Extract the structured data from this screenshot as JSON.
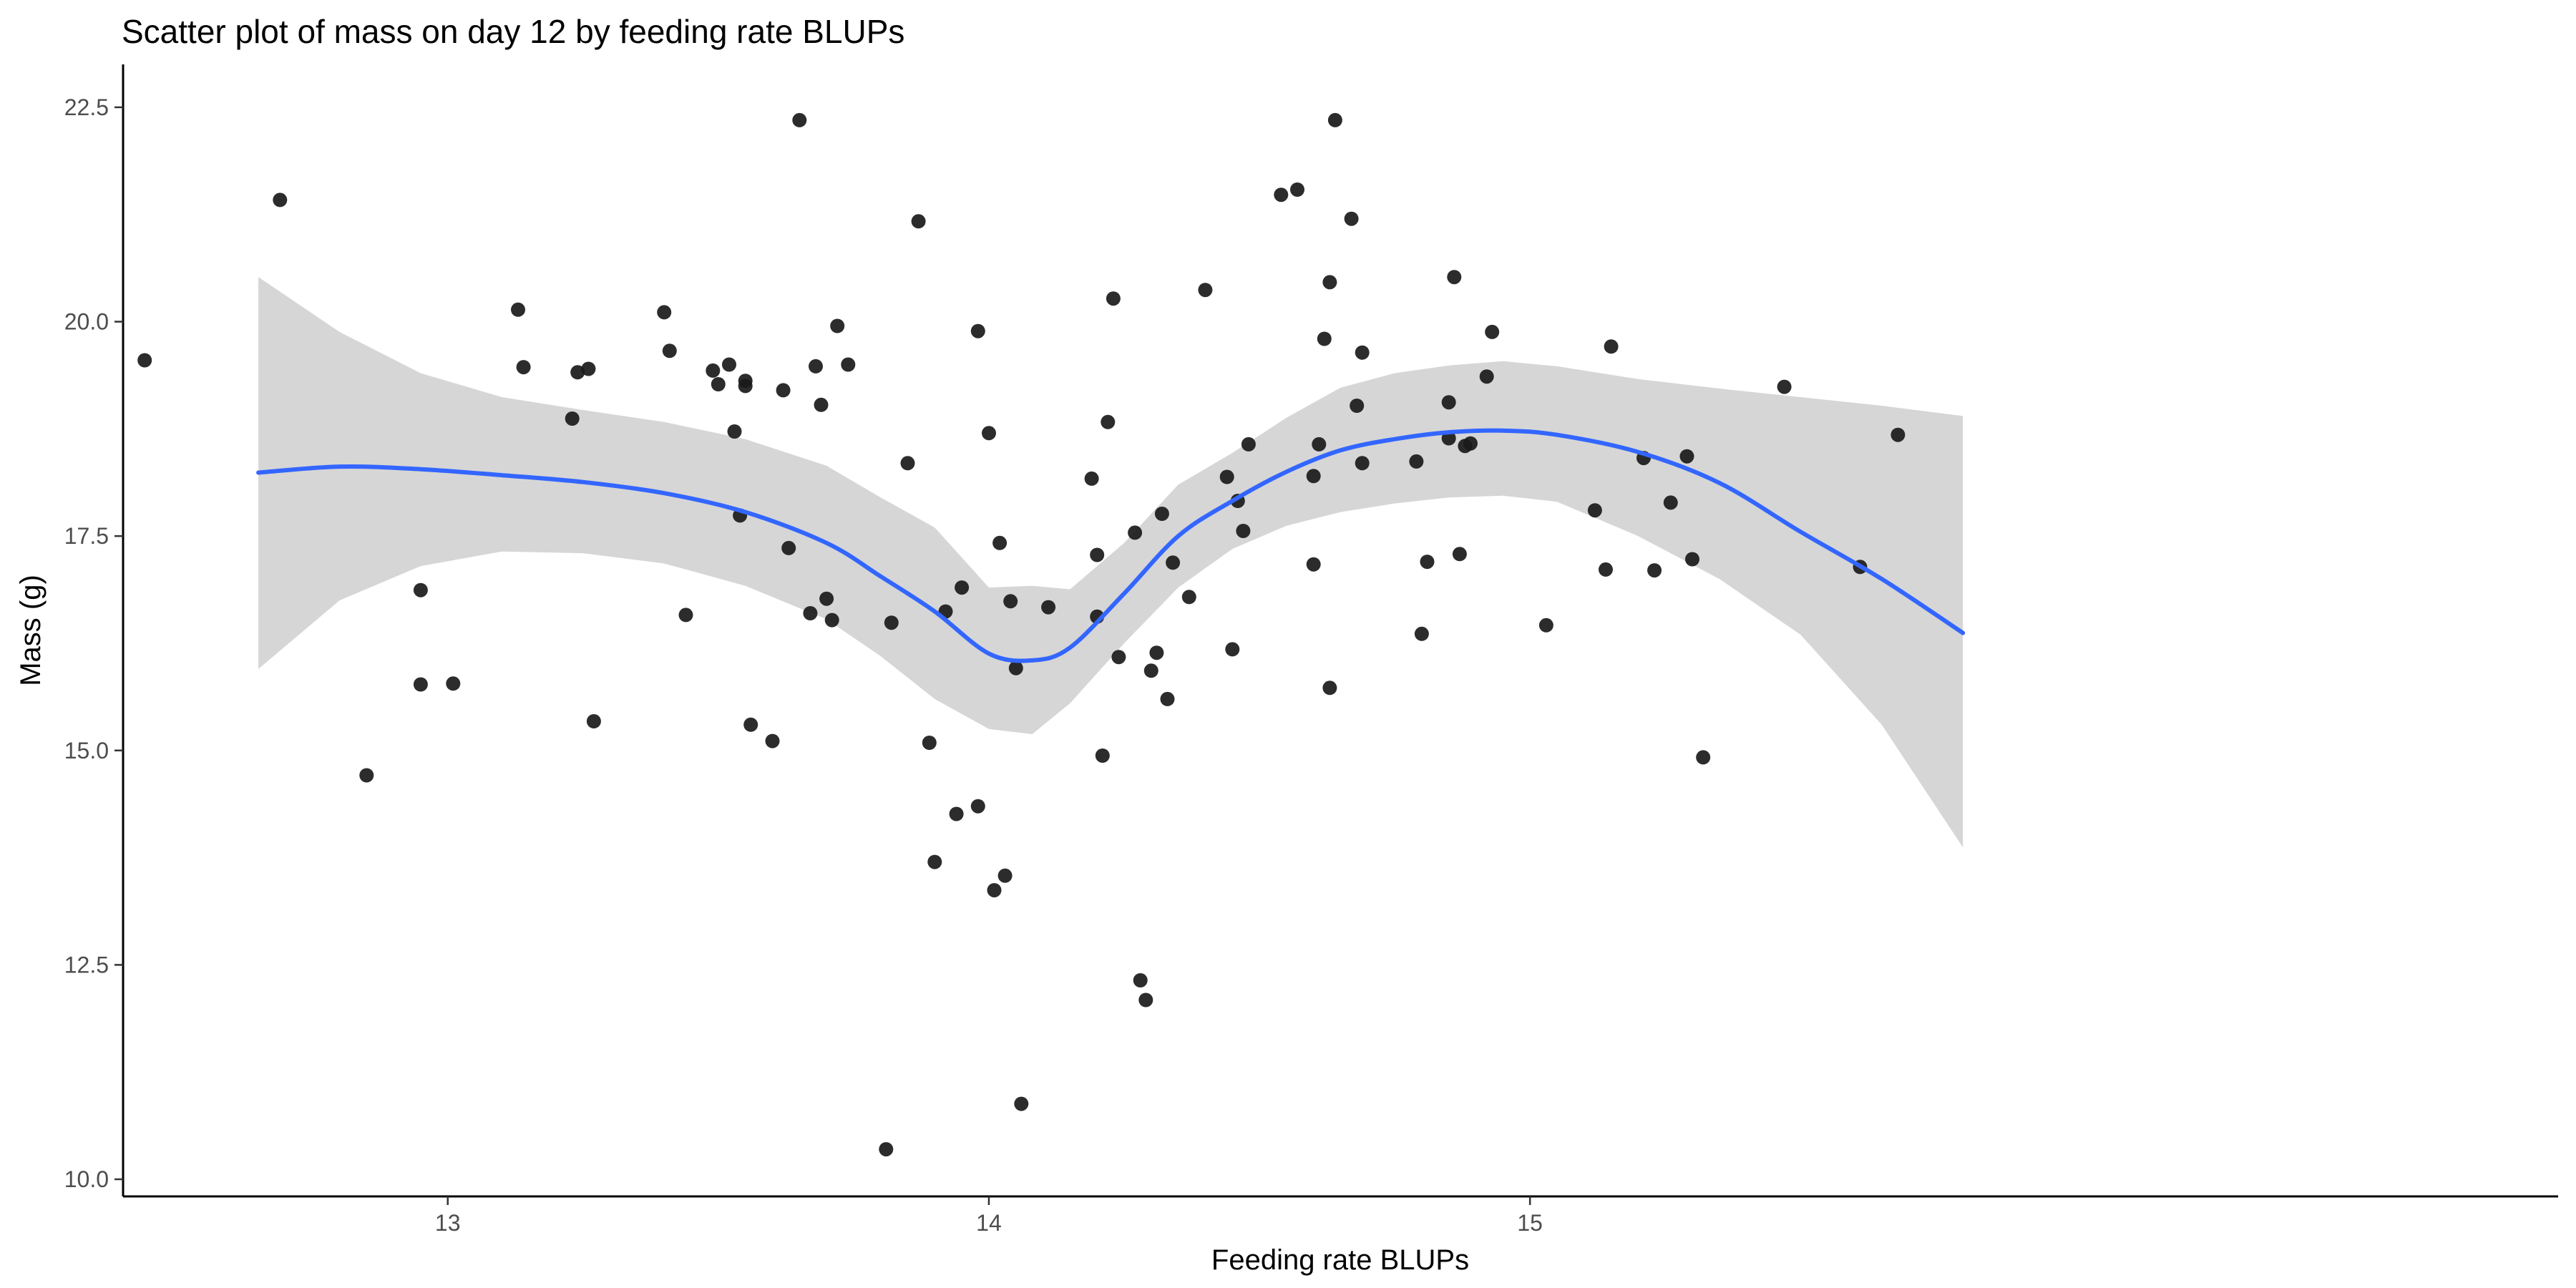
{
  "chart_data": {
    "type": "scatter",
    "title": "Scatter plot of mass on day 12 by feeding rate BLUPs",
    "xlabel": "Feeding rate BLUPs",
    "ylabel": "Mass (g)",
    "xlim": [
      12.4,
      16.9
    ],
    "ylim": [
      9.8,
      23.0
    ],
    "x_ticks": [
      13,
      14,
      15
    ],
    "x_tick_labels": [
      "13",
      "14",
      "15"
    ],
    "y_ticks": [
      10,
      12.5,
      15,
      17.5,
      20,
      22.5
    ],
    "y_tick_labels": [
      "10.0",
      "12.5",
      "15.0",
      "17.5",
      "20.0",
      "22.5"
    ],
    "grid": false,
    "legend": "none",
    "colors": {
      "points": "#1a1a1a",
      "smooth_line": "#3366ff",
      "confidence_band": "#d6d6d6"
    },
    "series": [
      {
        "kind": "points",
        "x": [
          12.44,
          12.69,
          12.85,
          12.95,
          12.95,
          13.01,
          13.13,
          13.14,
          13.23,
          13.24,
          13.26,
          13.27,
          13.4,
          13.41,
          13.44,
          13.49,
          13.5,
          13.52,
          13.53,
          13.54,
          13.55,
          13.55,
          13.56,
          13.6,
          13.62,
          13.63,
          13.65,
          13.67,
          13.68,
          13.69,
          13.7,
          13.71,
          13.72,
          13.74,
          13.81,
          13.82,
          13.85,
          13.87,
          13.89,
          13.9,
          13.92,
          13.94,
          13.95,
          13.98,
          13.98,
          14.0,
          14.01,
          14.02,
          14.03,
          14.04,
          14.05,
          14.06,
          14.11,
          14.19,
          14.2,
          14.2,
          14.21,
          14.22,
          14.23,
          14.24,
          14.27,
          14.28,
          14.29,
          14.3,
          14.31,
          14.32,
          14.33,
          14.34,
          14.37,
          14.4,
          14.44,
          14.45,
          14.46,
          14.47,
          14.48,
          14.54,
          14.57,
          14.6,
          14.6,
          14.61,
          14.62,
          14.63,
          14.63,
          14.64,
          14.67,
          14.68,
          14.69,
          14.69,
          14.79,
          14.8,
          14.81,
          14.85,
          14.85,
          14.86,
          14.87,
          14.88,
          14.89,
          14.92,
          14.93,
          15.03,
          15.12,
          15.14,
          15.15,
          15.21,
          15.23,
          15.26,
          15.29,
          15.3,
          15.32,
          15.47,
          15.61,
          15.68
        ],
        "y": [
          19.55,
          21.42,
          14.71,
          16.87,
          15.77,
          15.78,
          20.14,
          19.47,
          18.87,
          19.41,
          19.45,
          15.34,
          20.11,
          19.66,
          16.58,
          19.43,
          19.27,
          19.5,
          18.72,
          17.74,
          19.31,
          19.25,
          15.3,
          15.11,
          19.2,
          17.36,
          22.35,
          16.6,
          19.48,
          19.03,
          16.77,
          16.52,
          19.95,
          19.5,
          10.35,
          16.49,
          18.35,
          21.17,
          15.09,
          13.7,
          16.62,
          14.26,
          16.9,
          19.89,
          14.35,
          18.7,
          13.37,
          17.42,
          13.54,
          16.74,
          15.96,
          10.88,
          16.67,
          18.17,
          17.28,
          16.56,
          14.94,
          18.83,
          20.27,
          16.09,
          17.54,
          12.32,
          12.09,
          15.93,
          16.14,
          17.76,
          15.6,
          17.19,
          16.79,
          20.37,
          18.19,
          16.18,
          17.91,
          17.56,
          18.57,
          21.48,
          21.54,
          18.2,
          17.17,
          18.57,
          19.8,
          20.46,
          15.73,
          22.35,
          21.2,
          19.02,
          18.35,
          19.64,
          18.37,
          16.36,
          17.2,
          19.06,
          18.64,
          20.52,
          17.29,
          18.55,
          18.58,
          19.36,
          19.88,
          16.46,
          17.8,
          17.11,
          19.71,
          18.41,
          17.1,
          17.89,
          18.43,
          17.23,
          14.92,
          19.24,
          17.14,
          18.68
        ]
      },
      {
        "kind": "smooth",
        "x": [
          12.65,
          12.8,
          12.95,
          13.1,
          13.25,
          13.4,
          13.55,
          13.7,
          13.8,
          13.9,
          14.0,
          14.08,
          14.15,
          14.25,
          14.35,
          14.45,
          14.55,
          14.65,
          14.75,
          14.85,
          14.95,
          15.05,
          15.2,
          15.35,
          15.5,
          15.65,
          15.8
        ],
        "y": [
          18.24,
          18.31,
          18.28,
          18.21,
          18.13,
          18.0,
          17.78,
          17.42,
          17.03,
          16.62,
          16.13,
          16.05,
          16.2,
          16.83,
          17.5,
          17.91,
          18.25,
          18.5,
          18.63,
          18.71,
          18.73,
          18.68,
          18.48,
          18.12,
          17.55,
          17.0,
          16.37
        ]
      },
      {
        "kind": "band",
        "x": [
          12.65,
          12.8,
          12.95,
          13.1,
          13.25,
          13.4,
          13.55,
          13.7,
          13.8,
          13.9,
          14.0,
          14.08,
          14.15,
          14.25,
          14.35,
          14.45,
          14.55,
          14.65,
          14.75,
          14.85,
          14.95,
          15.05,
          15.2,
          15.35,
          15.5,
          15.65,
          15.8
        ],
        "lower": [
          15.95,
          16.75,
          17.15,
          17.32,
          17.3,
          17.18,
          16.92,
          16.53,
          16.1,
          15.6,
          15.25,
          15.19,
          15.55,
          16.25,
          16.9,
          17.35,
          17.62,
          17.78,
          17.88,
          17.95,
          17.97,
          17.9,
          17.5,
          17.0,
          16.35,
          15.3,
          13.87
        ],
        "upper": [
          20.52,
          19.88,
          19.4,
          19.12,
          18.97,
          18.83,
          18.63,
          18.32,
          17.95,
          17.6,
          16.9,
          16.92,
          16.88,
          17.42,
          18.1,
          18.47,
          18.88,
          19.23,
          19.4,
          19.49,
          19.54,
          19.48,
          19.33,
          19.22,
          19.12,
          19.02,
          18.9
        ]
      }
    ]
  }
}
